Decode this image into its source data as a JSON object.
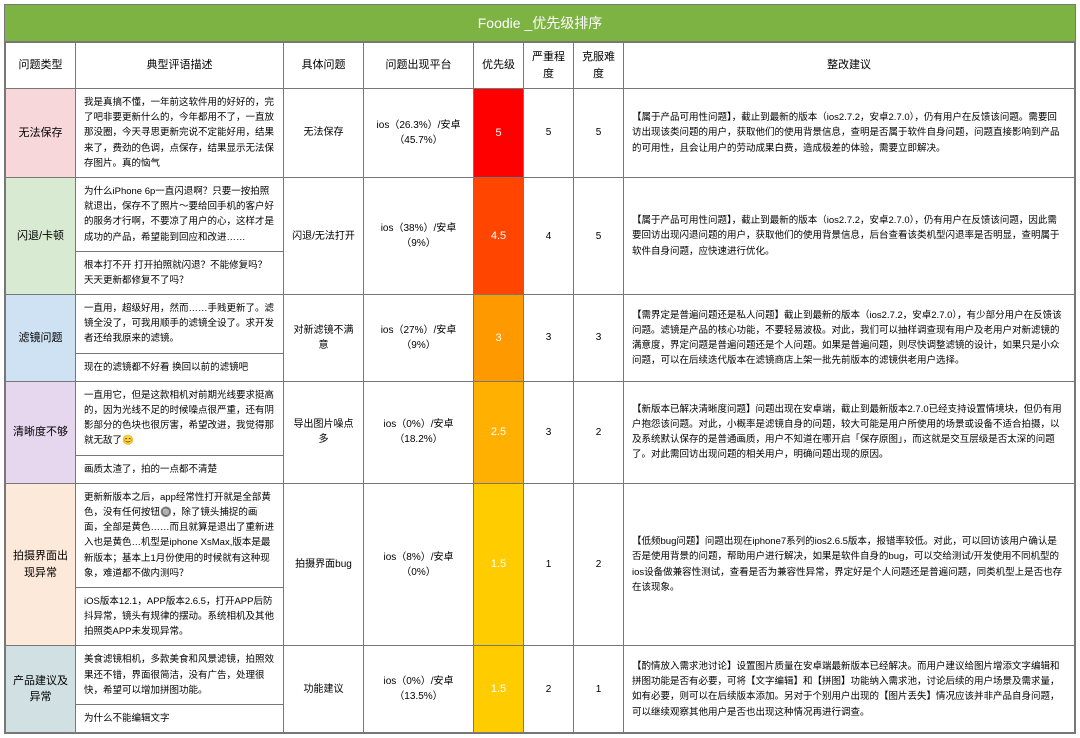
{
  "title": "Foodie _优先级排序",
  "headers": [
    "问题类型",
    "典型评语描述",
    "具体问题",
    "问题出现平台",
    "优先级",
    "严重程度",
    "克服难度",
    "整改建议"
  ],
  "category_colors": {
    "r1": "#f8d7da",
    "r2": "#d9ead3",
    "r3": "#cfe2f3",
    "r4": "#e6d7ef",
    "r5": "#fde9d9",
    "r6": "#d0e0e3"
  },
  "priority_colors": {
    "5": "#ff0000",
    "4.5": "#ff4500",
    "3": "#ff9900",
    "2.5": "#ffb000",
    "1.5": "#ffcc00"
  },
  "rows": [
    {
      "cat_key": "r1",
      "category": "无法保存",
      "span": 1,
      "descs": [
        "我是真搞不懂，一年前这软件用的好好的，完了吧非要更新什么的，今年都用不了，一直放那没圈，今天寻思更新完说不定能好用，结果来了，费劲的色调，点保存，结果显示无法保存图片。真的恼气"
      ],
      "issue": "无法保存",
      "platform": "ios（26.3%）/安卓（45.7%）",
      "prio": "5",
      "sev": "5",
      "diff": "5",
      "sugg": "【属于产品可用性问题】，截止到最新的版本（ios2.7.2，安卓2.7.0），仍有用户在反馈该问题。需要回访出现该类问题的用户，获取他们的使用背景信息，查明是否属于软件自身问题，问题直接影响到产品的可用性，且会让用户的劳动成果白费，造成极差的体验，需要立即解决。"
    },
    {
      "cat_key": "r2",
      "category": "闪退/卡顿",
      "span": 2,
      "descs": [
        "为什么iPhone 6p一直闪退啊？只要一按拍照就退出，保存不了照片～要给回手机的客户好的服务才行啊，不要凉了用户的心，这样才是成功的产品，希望能到回应和改进……",
        "根本打不开 打开拍照就闪退？不能修复吗？天天更新都修复不了吗？"
      ],
      "issue": "闪退/无法打开",
      "platform": "ios（38%）/安卓（9%）",
      "prio": "4.5",
      "sev": "4",
      "diff": "5",
      "sugg": "【属于产品可用性问题】，截止到最新的版本（ios2.7.2，安卓2.7.0），仍有用户在反馈该问题，因此需要回访出现闪退问题的用户，获取他们的使用背景信息，后台查看该类机型闪退率是否明显，查明属于软件自身问题，应快速进行优化。"
    },
    {
      "cat_key": "r3",
      "category": "滤镜问题",
      "span": 2,
      "descs": [
        "一直用，超级好用，然而……手贱更新了。滤镜全没了，可我用顺手的滤镜全设了。求开发者还给我原来的滤镜。",
        "现在的滤镜都不好看 换回以前的滤镜吧"
      ],
      "issue": "对新滤镜不满意",
      "platform": "ios（27%）/安卓（9%）",
      "prio": "3",
      "sev": "3",
      "diff": "3",
      "sugg": "【需界定是普遍问题还是私人问题】截止到最新的版本（ios2.7.2，安卓2.7.0），有少部分用户在反馈该问题。滤镜是产品的核心功能，不要轻易波极。对此，我们可以抽样调查现有用户及老用户对新滤镜的满意度，界定问题是普遍问题还是个人问题。如果是普遍问题，则尽快调整滤镜的设计，如果只是小众问题，可以在后续迭代版本在滤镜商店上架一批先前版本的滤镜供老用户选择。"
    },
    {
      "cat_key": "r4",
      "category": "清晰度不够",
      "span": 2,
      "descs": [
        "一直用它，但是这款相机对前期光线要求挺高的，因为光线不足的时候噪点很严重，还有阴影部分的色块也很厉害，希望改进，我觉得那就无敌了😊",
        "画质太渣了，拍的一点都不清楚"
      ],
      "issue": "导出图片噪点多",
      "platform": "ios（0%）/安卓（18.2%）",
      "prio": "2.5",
      "sev": "3",
      "diff": "2",
      "sugg": "【新版本已解决清晰度问题】问题出现在安卓端，截止到最新版本2.7.0已经支持设置情境块，但仍有用户抱怨该问题。对此，小概率是滤镜自身的问题，较大可能是用户所使用的场景或设备不适合拍摄，以及系统默认保存的是普通画质，用户不知道在哪开启「保存原图」，而这就是交互层级是否太深的问题了。对此需回访出现问题的相关用户，明确问题出现的原因。"
    },
    {
      "cat_key": "r5",
      "category": "拍摄界面出现异常",
      "span": 2,
      "descs": [
        "更新新版本之后，app经常性打开就是全部黄色，没有任何按钮🔘，除了镜头捕捉的画面，全部是黄色……而且就算是退出了重新进入也是黄色…机型是iphone XsMax,版本是最新版本；基本上1月份使用的时候就有这种现象，难道都不做内测吗？",
        "iOS版本12.1，APP版本2.6.5，打开APP后防抖异常，镜头有规律的摆动。系统相机及其他拍照类APP未发现异常。"
      ],
      "issue": "拍摄界面bug",
      "platform": "ios（8%）/安卓（0%）",
      "prio": "1.5",
      "sev": "1",
      "diff": "2",
      "sugg": "【低频bug问题】问题出现在iphone7系列的ios2.6.5版本，报错率较低。对此，可以回访该用户确认是否是使用背景的问题，帮助用户进行解决，如果是软件自身的bug，可以交给测试/开发使用不同机型的ios设备做兼容性测试，查看是否为兼容性异常，界定好是个人问题还是普遍问题，同类机型上是否也存在该现象。"
    },
    {
      "cat_key": "r6",
      "category": "产品建议及异常",
      "span": 2,
      "descs": [
        "美食滤镜相机，多款美食和风景滤镜，拍照效果还不错，界面很简洁，没有广告，处理很快，希望可以增加拼图功能。",
        "为什么不能编辑文字"
      ],
      "issue": "功能建议",
      "platform": "ios（0%）/安卓（13.5%）",
      "prio": "1.5",
      "sev": "2",
      "diff": "1",
      "sugg": "【酌情放入需求池讨论】设置图片质量在安卓端最新版本已经解决。而用户建议给图片增添文字编辑和拼图功能是否有必要，可将【文字编辑】和【拼图】功能纳入需求池，讨论后续的用户场景及需求量，如有必要，则可以在后续版本添加。另对于个别用户出现的【图片丢失】情况应该并非产品自身问题，可以继续观察其他用户是否也出现这种情况再进行调查。"
    }
  ]
}
